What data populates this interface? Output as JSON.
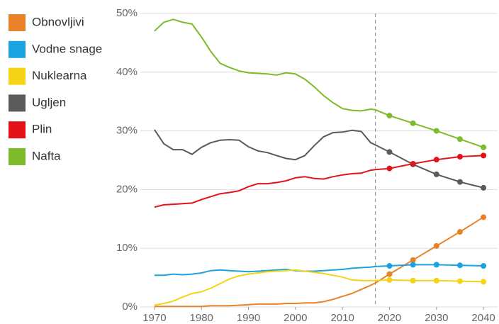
{
  "chart_data": {
    "type": "line",
    "x": [
      1970,
      1972,
      1974,
      1976,
      1978,
      1980,
      1982,
      1984,
      1986,
      1988,
      1990,
      1992,
      1994,
      1996,
      1998,
      2000,
      2002,
      2004,
      2006,
      2008,
      2010,
      2012,
      2014,
      2016,
      2017,
      2020,
      2025,
      2030,
      2035,
      2040
    ],
    "series": [
      {
        "name": "Obnovljivi",
        "color": "#e8832a",
        "values": [
          0.1,
          0.1,
          0.1,
          0.1,
          0.1,
          0.1,
          0.2,
          0.2,
          0.2,
          0.3,
          0.4,
          0.5,
          0.5,
          0.5,
          0.6,
          0.6,
          0.7,
          0.7,
          0.9,
          1.3,
          1.8,
          2.3,
          3.0,
          3.7,
          4.1,
          5.6,
          8.0,
          10.4,
          12.8,
          15.3
        ]
      },
      {
        "name": "Vodne snage",
        "color": "#1ba3e0",
        "values": [
          5.4,
          5.4,
          5.6,
          5.5,
          5.6,
          5.8,
          6.2,
          6.3,
          6.2,
          6.1,
          6.0,
          6.1,
          6.2,
          6.3,
          6.4,
          6.2,
          6.1,
          6.1,
          6.2,
          6.3,
          6.4,
          6.6,
          6.7,
          6.8,
          6.9,
          7.0,
          7.2,
          7.2,
          7.1,
          7.0
        ]
      },
      {
        "name": "Nuklearna",
        "color": "#f5d316",
        "values": [
          0.3,
          0.6,
          1.0,
          1.7,
          2.3,
          2.6,
          3.2,
          4.0,
          4.8,
          5.3,
          5.6,
          5.8,
          6.0,
          6.1,
          6.2,
          6.3,
          6.1,
          5.9,
          5.7,
          5.4,
          5.1,
          4.6,
          4.5,
          4.5,
          4.5,
          4.6,
          4.5,
          4.5,
          4.4,
          4.3
        ]
      },
      {
        "name": "Ugljen",
        "color": "#5a5a5a",
        "values": [
          30.2,
          27.8,
          26.8,
          26.8,
          26.0,
          27.2,
          28.0,
          28.4,
          28.5,
          28.4,
          27.3,
          26.6,
          26.3,
          25.8,
          25.3,
          25.1,
          25.8,
          27.5,
          29.0,
          29.7,
          29.8,
          30.1,
          29.9,
          28.0,
          27.6,
          26.4,
          24.3,
          22.6,
          21.3,
          20.3
        ]
      },
      {
        "name": "Plin",
        "color": "#e3131b",
        "values": [
          17.0,
          17.4,
          17.5,
          17.6,
          17.7,
          18.3,
          18.8,
          19.3,
          19.5,
          19.8,
          20.5,
          21.0,
          21.0,
          21.2,
          21.5,
          22.0,
          22.2,
          21.9,
          21.8,
          22.2,
          22.5,
          22.7,
          22.8,
          23.3,
          23.4,
          23.6,
          24.4,
          25.1,
          25.6,
          25.8
        ]
      },
      {
        "name": "Nafta",
        "color": "#7dbb2c",
        "values": [
          47.0,
          48.5,
          49.0,
          48.5,
          48.2,
          46.0,
          43.5,
          41.5,
          40.8,
          40.2,
          39.9,
          39.8,
          39.7,
          39.5,
          39.9,
          39.7,
          38.8,
          37.5,
          36.0,
          34.8,
          33.8,
          33.5,
          33.4,
          33.7,
          33.6,
          32.6,
          31.3,
          30.0,
          28.6,
          27.2
        ]
      }
    ],
    "projection_start": 2017,
    "xlim": [
      1967,
      2043
    ],
    "xticks": [
      1970,
      1980,
      1990,
      2000,
      2010,
      2020,
      2030,
      2040
    ],
    "ylim": [
      0,
      50
    ],
    "yticks": [
      {
        "value": 0,
        "label": "0%"
      },
      {
        "value": 10,
        "label": "10%"
      },
      {
        "value": 20,
        "label": "20%"
      },
      {
        "value": 30,
        "label": "30%"
      },
      {
        "value": 40,
        "label": "40%"
      },
      {
        "value": 50,
        "label": "50%"
      }
    ],
    "grid": true,
    "legend": "left"
  }
}
